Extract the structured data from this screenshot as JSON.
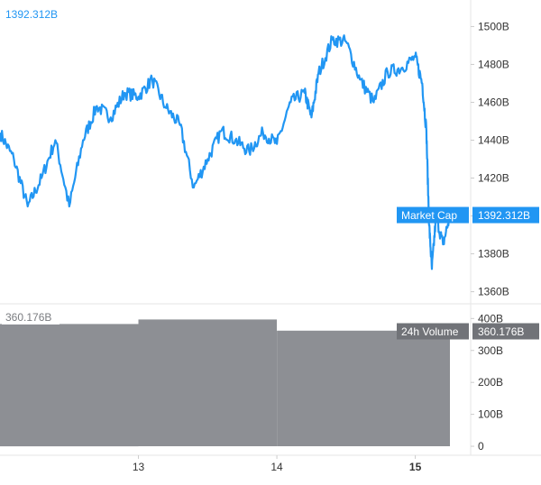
{
  "chart_data": [
    {
      "type": "line",
      "title": "",
      "top_left_value": "1392.312B",
      "series": [
        {
          "name": "Market Cap",
          "current_label": "1392.312B",
          "color": "#2196f3",
          "x": [
            12.0,
            12.1,
            12.2,
            12.3,
            12.4,
            12.5,
            12.6,
            12.7,
            12.8,
            12.9,
            13.0,
            13.1,
            13.2,
            13.3,
            13.4,
            13.5,
            13.6,
            13.7,
            13.8,
            13.9,
            14.0,
            14.1,
            14.2,
            14.25,
            14.3,
            14.4,
            14.5,
            14.6,
            14.7,
            14.8,
            14.9,
            15.0,
            15.05,
            15.08,
            15.1,
            15.12,
            15.15,
            15.2,
            15.25
          ],
          "values": [
            1444,
            1430,
            1405,
            1420,
            1440,
            1405,
            1440,
            1458,
            1452,
            1465,
            1463,
            1472,
            1457,
            1448,
            1415,
            1430,
            1445,
            1440,
            1434,
            1444,
            1438,
            1460,
            1465,
            1452,
            1475,
            1493,
            1492,
            1472,
            1460,
            1476,
            1478,
            1484,
            1470,
            1445,
            1395,
            1372,
            1400,
            1385,
            1400
          ]
        }
      ],
      "y_axis": {
        "ticks": [
          1360,
          1380,
          1400,
          1420,
          1440,
          1460,
          1480,
          1500
        ],
        "tick_labels": [
          "1360B",
          "1380B",
          "1400B",
          "1420B",
          "1440B",
          "1460B",
          "1480B",
          "1500B"
        ],
        "min": 1356,
        "max": 1514,
        "unit": "B"
      },
      "x_axis": {
        "ticks": [
          13,
          14,
          15
        ],
        "tick_labels": [
          "13",
          "14",
          "15"
        ],
        "min": 12.0,
        "max": 15.4,
        "bold_ticks": [
          "15"
        ]
      },
      "axis_tag": {
        "text": "Market Cap",
        "value": "1392.312B",
        "color": "#2196f3"
      },
      "grid": false
    },
    {
      "type": "area",
      "title": "",
      "top_left_value": "360.176B",
      "series": [
        {
          "name": "24h Volume",
          "current_label": "360.176B",
          "color": "#8d8f94",
          "x": [
            12.0,
            13.0,
            14.0,
            15.25
          ],
          "step_end": [
            13.0,
            14.0,
            15.25,
            15.25
          ],
          "values": [
            383,
            397,
            362,
            360
          ]
        }
      ],
      "y_axis": {
        "ticks": [
          0,
          100,
          200,
          300,
          400
        ],
        "tick_labels": [
          "0",
          "100B",
          "200B",
          "300B",
          "400B"
        ],
        "min": -14,
        "max": 432,
        "unit": "B"
      },
      "axis_tag": {
        "text": "24h Volume",
        "value": "360.176B",
        "color": "#717378"
      },
      "grid": false
    }
  ]
}
